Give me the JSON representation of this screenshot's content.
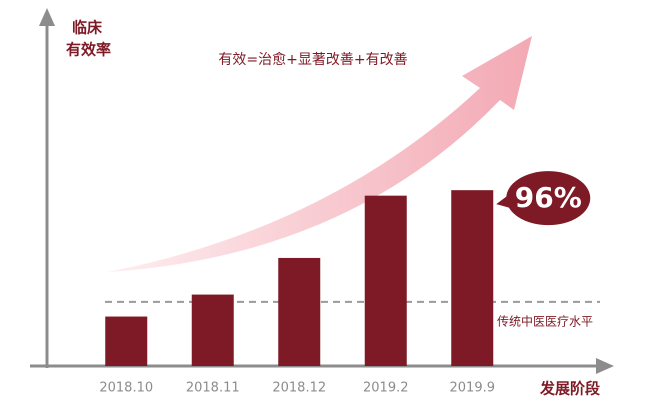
{
  "chart_data": {
    "type": "bar",
    "ylabel": [
      "临床",
      "有效率"
    ],
    "xlabel": "发展阶段",
    "annotation": "有效=治愈+显著改善+有改善",
    "categories": [
      "2018.10",
      "2018.11",
      "2018.12",
      "2019.2",
      "2019.9"
    ],
    "values": [
      27,
      39,
      59,
      93,
      96
    ],
    "value_labels": [
      null,
      null,
      null,
      null,
      "96%"
    ],
    "color": "#7d1a25",
    "ylim": [
      0,
      190
    ],
    "reference": {
      "label": "传统中医医疗水平",
      "value": 35
    }
  }
}
